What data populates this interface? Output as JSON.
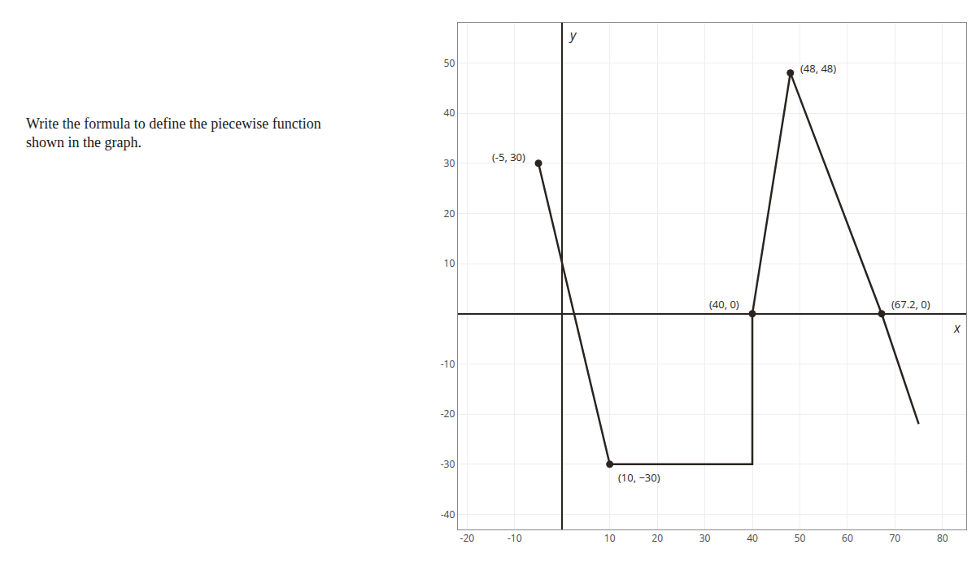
{
  "chart_data": {
    "type": "line",
    "x": [
      -5,
      10,
      40,
      40,
      48,
      67.2,
      75
    ],
    "values": [
      30,
      -30,
      -30,
      0,
      48,
      0,
      -22
    ],
    "color": "#2a2420",
    "xlabel": "x",
    "ylabel": "y",
    "xlim": [
      -22,
      85
    ],
    "ylim": [
      -43,
      58
    ],
    "xticks": [
      -20,
      -10,
      10,
      20,
      30,
      40,
      50,
      60,
      70,
      80
    ],
    "yticks": [
      -40,
      -30,
      -20,
      -10,
      10,
      20,
      30,
      40,
      50
    ],
    "grid": true,
    "annotations": [
      {
        "text": "Write the formula to define the piecewise function\nshown in the graph."
      },
      {
        "x": -5,
        "y": 30,
        "text": "(-5, 30)"
      },
      {
        "x": 10,
        "y": -30,
        "text": "(10, −30)"
      },
      {
        "x": 40,
        "y": 0,
        "text": "(40, 0)"
      },
      {
        "x": 48,
        "y": 48,
        "text": "(48, 48)"
      },
      {
        "x": 67.2,
        "y": 0,
        "text": "(67.2, 0)"
      }
    ]
  }
}
